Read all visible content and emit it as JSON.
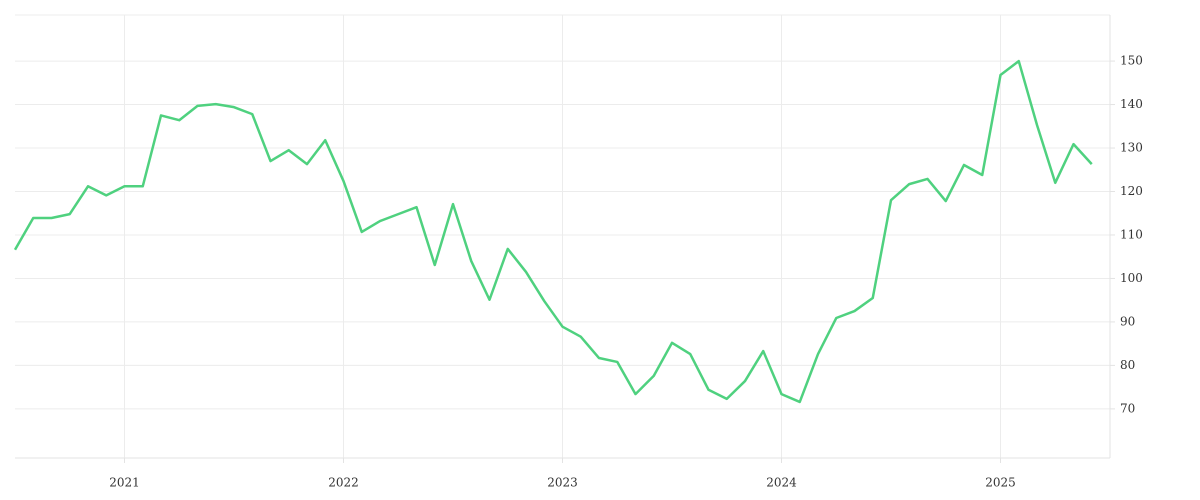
{
  "chart_data": {
    "type": "line",
    "x": [
      "2020-07",
      "2020-08",
      "2020-09",
      "2020-10",
      "2020-11",
      "2020-12",
      "2021-01",
      "2021-02",
      "2021-03",
      "2021-04",
      "2021-05",
      "2021-06",
      "2021-07",
      "2021-08",
      "2021-09",
      "2021-10",
      "2021-11",
      "2021-12",
      "2022-01",
      "2022-02",
      "2022-03",
      "2022-04",
      "2022-05",
      "2022-06",
      "2022-07",
      "2022-08",
      "2022-09",
      "2022-10",
      "2022-11",
      "2022-12",
      "2023-01",
      "2023-02",
      "2023-03",
      "2023-04",
      "2023-05",
      "2023-06",
      "2023-07",
      "2023-08",
      "2023-09",
      "2023-10",
      "2023-11",
      "2023-12",
      "2024-01",
      "2024-02",
      "2024-03",
      "2024-04",
      "2024-05",
      "2024-06",
      "2024-07",
      "2024-08",
      "2024-09",
      "2024-10",
      "2024-11",
      "2024-12",
      "2025-01",
      "2025-02",
      "2025-03",
      "2025-04",
      "2025-05",
      "2025-06"
    ],
    "series": [
      {
        "color": "#4fd17f",
        "values": [
          106.6,
          113.9,
          113.9,
          114.8,
          121.2,
          119.1,
          121.2,
          121.2,
          137.5,
          136.4,
          139.7,
          140.1,
          139.4,
          137.8,
          127.0,
          129.5,
          126.3,
          131.8,
          122.4,
          110.7,
          113.2,
          114.8,
          116.4,
          103.1,
          117.1,
          104.0,
          95.1,
          106.8,
          101.5,
          94.8,
          88.9,
          86.6,
          81.7,
          80.8,
          73.4,
          77.6,
          85.2,
          82.6,
          74.4,
          72.3,
          76.4,
          83.3,
          73.4,
          71.6,
          82.6,
          90.9,
          92.5,
          95.5,
          118.0,
          121.7,
          122.9,
          117.8,
          126.1,
          123.8,
          146.8,
          150.0,
          135.3,
          122.0,
          130.9,
          126.3
        ]
      }
    ],
    "xlim": [
      "2020-07",
      "2025-07"
    ],
    "xticks": [
      "2021",
      "2022",
      "2023",
      "2024",
      "2025"
    ],
    "ylim": [
      58.7,
      160.6
    ],
    "yticks": [
      70,
      80,
      90,
      100,
      110,
      120,
      130,
      140,
      150
    ],
    "grid": true
  }
}
